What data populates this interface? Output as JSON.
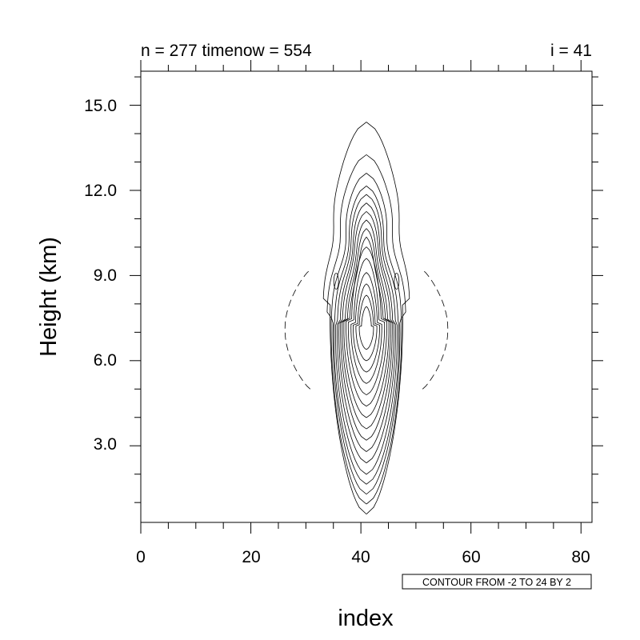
{
  "chart_data": {
    "type": "contour",
    "title_left": "n = 277 timenow = 554",
    "title_right": "i = 41",
    "xlabel": "index",
    "ylabel": "Height (km)",
    "xlim": [
      0,
      82
    ],
    "ylim": [
      0.3,
      16.2
    ],
    "x_ticks": [
      "0",
      "20",
      "40",
      "60",
      "80"
    ],
    "y_ticks": [
      "3.0",
      "6.0",
      "9.0",
      "12.0",
      "15.0"
    ],
    "contour_info": "CONTOUR FROM -2 TO 24 BY 2",
    "contours": {
      "from": -2,
      "to": 24,
      "step": 2,
      "negative_style": "dashed",
      "center_index": 41,
      "outer_contour_top_km": 14.4,
      "outer_contour_bottom_km": 0.6,
      "max_center_height_km": 8.0
    }
  }
}
